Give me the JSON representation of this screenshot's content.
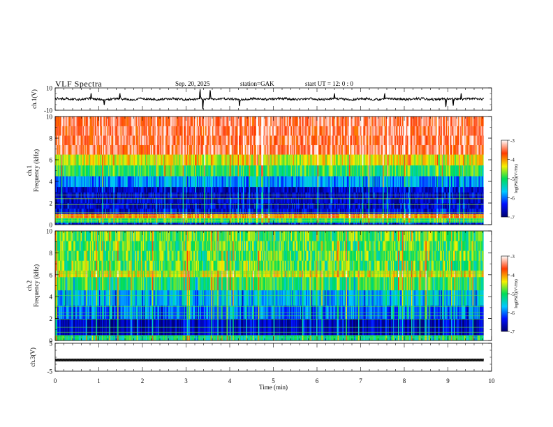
{
  "header": {
    "title": "VLF  Spectra",
    "date": "Sep. 20, 2025",
    "station": "station=GAK",
    "start": "start  UT =    12: 0   : 0"
  },
  "chart_data": [
    {
      "type": "line",
      "id": "ch1-waveform",
      "ylabel": "ch.1(V)",
      "ylim": [
        -10,
        10
      ],
      "yticks": [
        "10",
        "-10"
      ],
      "baseline": 0,
      "noise_amplitude_typical": 2,
      "spikes": [
        {
          "t": 0.82,
          "v": 5
        },
        {
          "t": 1.12,
          "v": -5
        },
        {
          "t": 1.48,
          "v": 5
        },
        {
          "t": 3.32,
          "v": 9
        },
        {
          "t": 3.38,
          "v": -9
        },
        {
          "t": 3.55,
          "v": 8
        },
        {
          "t": 4.22,
          "v": -6
        },
        {
          "t": 6.4,
          "v": 5
        },
        {
          "t": 7.55,
          "v": 5
        },
        {
          "t": 8.95,
          "v": -7
        },
        {
          "t": 9.12,
          "v": -6
        },
        {
          "t": 9.3,
          "v": 5
        }
      ],
      "x_end_min": 9.82
    },
    {
      "type": "heatmap",
      "id": "ch1-spectrogram",
      "ylabel": "ch.1\nFrequency  (kHz)",
      "ylim": [
        0,
        10
      ],
      "yticks": [
        "0",
        "2",
        "4",
        "6",
        "8",
        "10"
      ],
      "colorbar": {
        "label": "log(PSD)(V²/Hz)",
        "range": [
          -7,
          -3
        ],
        "ticks": [
          "-3",
          "-4",
          "-5",
          "-6",
          "-7"
        ]
      },
      "bands": [
        {
          "f_lo": 0,
          "f_hi": 0.2,
          "logPSD": -6.4
        },
        {
          "f_lo": 0.2,
          "f_hi": 0.6,
          "logPSD": -5.0
        },
        {
          "f_lo": 0.6,
          "f_hi": 1.0,
          "logPSD": -3.9
        },
        {
          "f_lo": 1.0,
          "f_hi": 1.5,
          "logPSD": -6.5
        },
        {
          "f_lo": 1.5,
          "f_hi": 3.5,
          "logPSD": -6.6
        },
        {
          "f_lo": 3.5,
          "f_hi": 4.5,
          "logPSD": -5.9
        },
        {
          "f_lo": 4.5,
          "f_hi": 5.5,
          "logPSD": -5.0
        },
        {
          "f_lo": 5.5,
          "f_hi": 6.5,
          "logPSD": -4.4
        },
        {
          "f_lo": 6.5,
          "f_hi": 10,
          "logPSD": -3.5
        }
      ],
      "x_end_min": 9.82
    },
    {
      "type": "heatmap",
      "id": "ch2-spectrogram",
      "ylabel": "ch.2\nFrequency  (kHz)",
      "ylim": [
        0,
        10
      ],
      "yticks": [
        "0",
        "2",
        "4",
        "6",
        "8",
        "10"
      ],
      "colorbar": {
        "label": "log(PSD)(V²/Hz)",
        "range": [
          -7,
          -3
        ],
        "ticks": [
          "-3",
          "-4",
          "-5",
          "-6",
          "-7"
        ]
      },
      "bands": [
        {
          "f_lo": 0,
          "f_hi": 0.5,
          "logPSD": -5.2
        },
        {
          "f_lo": 0.5,
          "f_hi": 2.0,
          "logPSD": -6.6
        },
        {
          "f_lo": 2.0,
          "f_hi": 3.2,
          "logPSD": -6.0
        },
        {
          "f_lo": 3.2,
          "f_hi": 4.6,
          "logPSD": -5.7
        },
        {
          "f_lo": 4.6,
          "f_hi": 5.8,
          "logPSD": -5.0
        },
        {
          "f_lo": 5.8,
          "f_hi": 6.4,
          "logPSD": -4.4
        },
        {
          "f_lo": 6.4,
          "f_hi": 10,
          "logPSD": -4.9
        }
      ],
      "x_end_min": 9.82
    },
    {
      "type": "line",
      "id": "ch3-waveform",
      "ylabel": "ch.3(V)",
      "ylim": [
        -5,
        5
      ],
      "yticks": [
        "5",
        "-5"
      ],
      "level": -1,
      "x_end_min": 9.82
    }
  ],
  "xaxis": {
    "label": "Time  (min)",
    "range": [
      0,
      10
    ],
    "ticks": [
      "0",
      "1",
      "2",
      "3",
      "4",
      "5",
      "6",
      "7",
      "8",
      "9",
      "10"
    ]
  }
}
